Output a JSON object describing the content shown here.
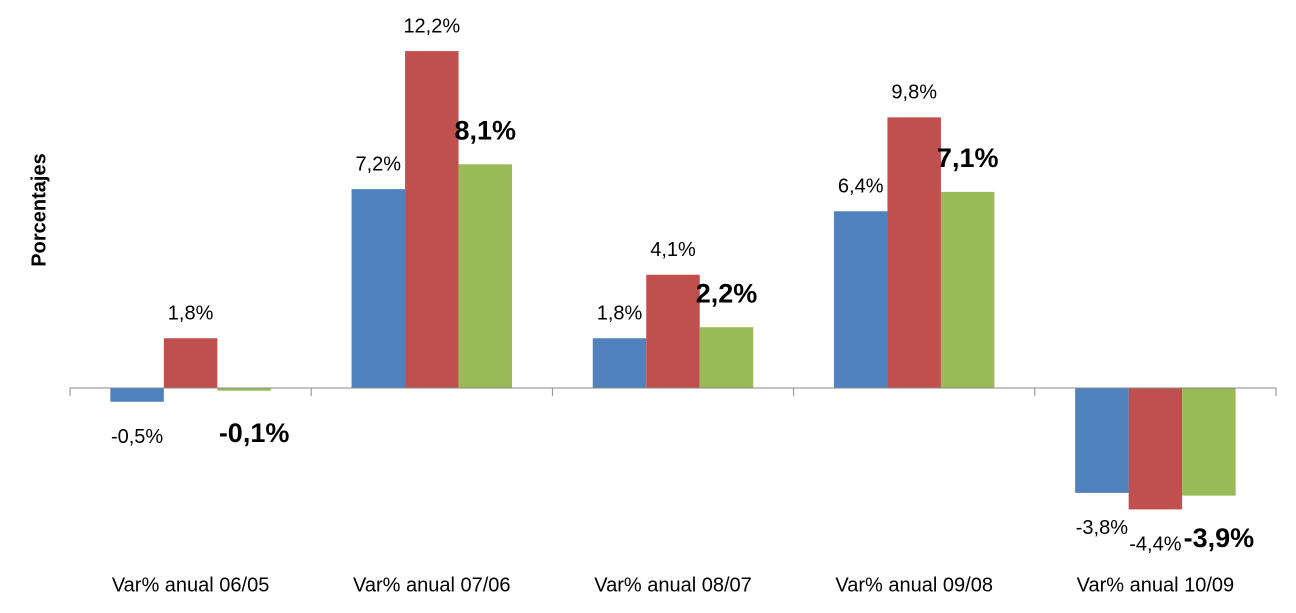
{
  "chart_data": {
    "type": "bar",
    "y_label": "Porcentajes",
    "categories": [
      "Var% anual 06/05",
      "Var% anual 07/06",
      "Var% anual 08/07",
      "Var% anual 09/08",
      "Var% anual 10/09"
    ],
    "series": [
      {
        "color": "#4f81bd",
        "values": [
          -0.5,
          7.2,
          1.8,
          6.4,
          -3.8
        ],
        "value_labels": [
          "-0,5%",
          "7,2%",
          "1,8%",
          "6,4%",
          "-3,8%"
        ]
      },
      {
        "color": "#c0504d",
        "values": [
          1.8,
          12.2,
          4.1,
          9.8,
          -4.4
        ],
        "value_labels": [
          "1,8%",
          "12,2%",
          "4,1%",
          "9,8%",
          "-4,4%"
        ]
      },
      {
        "color": "#9bbb59",
        "values": [
          -0.1,
          8.1,
          2.2,
          7.1,
          -3.9
        ],
        "value_labels": [
          "-0,1%",
          "8,1%",
          "2,2%",
          "7,1%",
          "-3,9%"
        ]
      }
    ],
    "ylim": [
      -5,
      13
    ]
  }
}
